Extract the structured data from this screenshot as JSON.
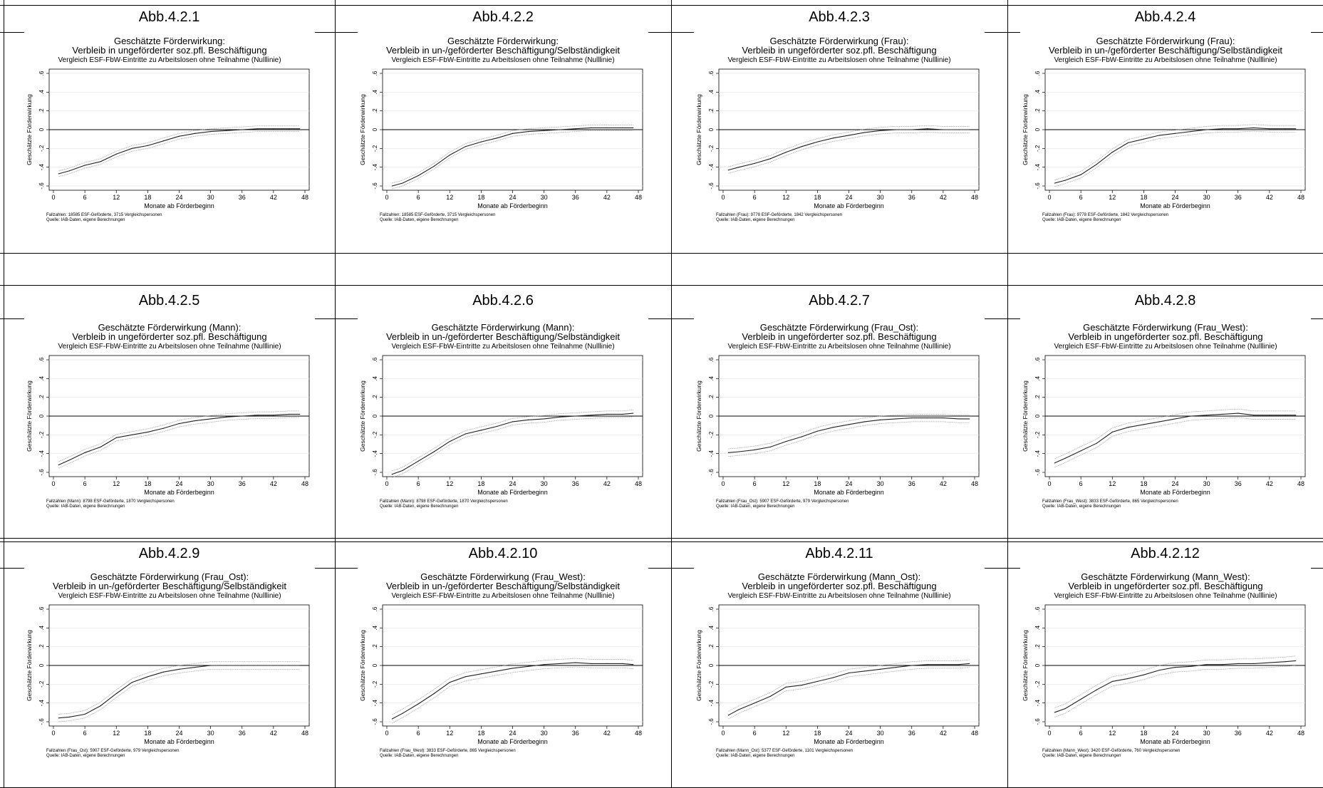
{
  "common": {
    "subtitle": "Vergleich ESF-FbW-Eintritte zu Arbeitslosen ohne Teilnahme (Nulllinie)",
    "xlabel": "Monate ab Förderbeginn",
    "ylabel": "Geschätzte Förderwirkung",
    "source": "Quelle: IAB-Daten, eigene Berechnungen",
    "xticks": [
      "0",
      "6",
      "12",
      "18",
      "24",
      "30",
      "36",
      "42",
      "48"
    ],
    "yticks": [
      "-.6",
      "-.4",
      "-.2",
      "0",
      ".2",
      ".4",
      ".6"
    ]
  },
  "figures": [
    {
      "label": "Abb.4.2.1",
      "chart_data": {
        "type": "line",
        "title": "Geschätzte Förderwirkung:",
        "title2": "Verbleib in ungeförderter soz.pfl. Beschäftigung",
        "note": "Fallzahlen: 18585 ESF-Geförderte, 3715 Vergleichspersonen",
        "xlim": [
          0,
          48
        ],
        "ylim": [
          -0.6,
          0.6
        ],
        "x": [
          1,
          3,
          6,
          9,
          12,
          15,
          18,
          21,
          24,
          27,
          30,
          33,
          36,
          39,
          42,
          45,
          47
        ],
        "series": [
          {
            "values": [
              -0.47,
              -0.44,
              -0.38,
              -0.34,
              -0.26,
              -0.2,
              -0.17,
              -0.12,
              -0.07,
              -0.04,
              -0.02,
              -0.01,
              0.0,
              0.01,
              0.01,
              0.01,
              0.01
            ]
          }
        ],
        "ci": 0.03
      }
    },
    {
      "label": "Abb.4.2.2",
      "chart_data": {
        "type": "line",
        "title": "Geschätzte Förderwirkung:",
        "title2": "Verbleib in un-/geförderter Beschäftigung/Selbständigkeit",
        "note": "Fallzahlen: 18585 ESF-Geförderte, 3715 Vergleichspersonen",
        "xlim": [
          0,
          48
        ],
        "ylim": [
          -0.6,
          0.6
        ],
        "x": [
          1,
          3,
          6,
          9,
          12,
          15,
          18,
          21,
          24,
          27,
          30,
          33,
          36,
          39,
          42,
          45,
          47
        ],
        "series": [
          {
            "values": [
              -0.6,
              -0.57,
              -0.49,
              -0.39,
              -0.27,
              -0.18,
              -0.13,
              -0.09,
              -0.04,
              -0.02,
              -0.01,
              0.0,
              0.01,
              0.02,
              0.02,
              0.02,
              0.02
            ]
          }
        ],
        "ci": 0.03
      }
    },
    {
      "label": "Abb.4.2.3",
      "chart_data": {
        "type": "line",
        "title": "Geschätzte Förderwirkung (Frau):",
        "title2": "Verbleib in ungeförderter soz.pfl. Beschäftigung",
        "note": "Fallzahlen (Frau): 9778 ESF-Geförderte, 1842 Vergleichspersonen",
        "xlim": [
          0,
          48
        ],
        "ylim": [
          -0.6,
          0.6
        ],
        "x": [
          1,
          3,
          6,
          9,
          12,
          15,
          18,
          21,
          24,
          27,
          30,
          33,
          36,
          39,
          42,
          45,
          47
        ],
        "series": [
          {
            "values": [
              -0.43,
              -0.4,
              -0.36,
              -0.31,
              -0.24,
              -0.18,
              -0.13,
              -0.09,
              -0.06,
              -0.03,
              -0.01,
              0.0,
              0.0,
              0.01,
              0.0,
              0.0,
              0.0
            ]
          }
        ],
        "ci": 0.035
      }
    },
    {
      "label": "Abb.4.2.4",
      "chart_data": {
        "type": "line",
        "title": "Geschätzte Förderwirkung (Frau):",
        "title2": "Verbleib in un-/geförderter Beschäftigung/Selbständigkeit",
        "note": "Fallzahlen (Frau): 9778 ESF-Geförderte, 1842 Vergleichspersonen",
        "xlim": [
          0,
          48
        ],
        "ylim": [
          -0.6,
          0.6
        ],
        "x": [
          1,
          3,
          6,
          9,
          12,
          15,
          18,
          21,
          24,
          27,
          30,
          33,
          36,
          39,
          42,
          45,
          47
        ],
        "series": [
          {
            "values": [
              -0.57,
              -0.54,
              -0.48,
              -0.37,
              -0.24,
              -0.14,
              -0.1,
              -0.06,
              -0.04,
              -0.02,
              0.0,
              0.01,
              0.01,
              0.02,
              0.01,
              0.01,
              0.01
            ]
          }
        ],
        "ci": 0.035
      }
    },
    {
      "label": "Abb.4.2.5",
      "chart_data": {
        "type": "line",
        "title": "Geschätzte Förderwirkung (Mann):",
        "title2": "Verbleib in ungeförderter soz.pfl. Beschäftigung",
        "note": "Fallzahlen (Mann): 8798 ESF-Geförderte, 1870 Vergleichspersonen",
        "xlim": [
          0,
          48
        ],
        "ylim": [
          -0.6,
          0.6
        ],
        "x": [
          1,
          3,
          6,
          9,
          12,
          15,
          18,
          21,
          24,
          27,
          30,
          33,
          36,
          39,
          42,
          45,
          47
        ],
        "series": [
          {
            "values": [
              -0.52,
              -0.47,
              -0.39,
              -0.33,
              -0.23,
              -0.2,
              -0.17,
              -0.13,
              -0.08,
              -0.05,
              -0.03,
              -0.01,
              0.0,
              0.01,
              0.01,
              0.02,
              0.02
            ]
          }
        ],
        "ci": 0.035
      }
    },
    {
      "label": "Abb.4.2.6",
      "chart_data": {
        "type": "line",
        "title": "Geschätzte Förderwirkung (Mann):",
        "title2": "Verbleib in un-/geförderter Beschäftigung/Selbständigkeit",
        "note": "Fallzahlen (Mann): 8798 ESF-Geförderte, 1870 Vergleichspersonen",
        "xlim": [
          0,
          48
        ],
        "ylim": [
          -0.6,
          0.6
        ],
        "x": [
          1,
          3,
          6,
          9,
          12,
          15,
          18,
          21,
          24,
          27,
          30,
          33,
          36,
          39,
          42,
          45,
          47
        ],
        "series": [
          {
            "values": [
              -0.62,
              -0.58,
              -0.48,
              -0.38,
              -0.27,
              -0.19,
              -0.15,
              -0.11,
              -0.06,
              -0.04,
              -0.03,
              -0.01,
              0.0,
              0.01,
              0.02,
              0.02,
              0.03
            ]
          }
        ],
        "ci": 0.035
      }
    },
    {
      "label": "Abb.4.2.7",
      "chart_data": {
        "type": "line",
        "title": "Geschätzte Förderwirkung (Frau_Ost):",
        "title2": "Verbleib in ungeförderter soz.pfl. Beschäftigung",
        "note": "Fallzahlen (Frau_Ost): 5907 ESF-Geförderte, 979 Vergleichspersonen",
        "xlim": [
          0,
          48
        ],
        "ylim": [
          -0.6,
          0.6
        ],
        "x": [
          1,
          3,
          6,
          9,
          12,
          15,
          18,
          21,
          24,
          27,
          30,
          33,
          36,
          39,
          42,
          45,
          47
        ],
        "series": [
          {
            "values": [
              -0.39,
              -0.38,
              -0.36,
              -0.33,
              -0.27,
              -0.22,
              -0.16,
              -0.12,
              -0.09,
              -0.06,
              -0.04,
              -0.03,
              -0.02,
              -0.02,
              -0.02,
              -0.03,
              -0.03
            ]
          }
        ],
        "ci": 0.04
      }
    },
    {
      "label": "Abb.4.2.8",
      "chart_data": {
        "type": "line",
        "title": "Geschätzte Förderwirkung (Frau_West):",
        "title2": "Verbleib in ungeförderter soz.pfl. Beschäftigung",
        "note": "Fallzahlen (Frau_West): 3833 ESF-Geförderte, 865 Vergleichspersonen",
        "xlim": [
          0,
          48
        ],
        "ylim": [
          -0.6,
          0.6
        ],
        "x": [
          1,
          3,
          6,
          9,
          12,
          15,
          18,
          21,
          24,
          27,
          30,
          33,
          36,
          39,
          42,
          45,
          47
        ],
        "series": [
          {
            "values": [
              -0.5,
              -0.45,
              -0.37,
              -0.29,
              -0.17,
              -0.12,
              -0.09,
              -0.06,
              -0.03,
              0.0,
              0.01,
              0.02,
              0.03,
              0.01,
              0.01,
              0.01,
              0.01
            ]
          }
        ],
        "ci": 0.045
      }
    },
    {
      "label": "Abb.4.2.9",
      "chart_data": {
        "type": "line",
        "title": "Geschätzte Förderwirkung (Frau_Ost):",
        "title2": "Verbleib in un-/geförderter Beschäftigung/Selbständigkeit",
        "note": "Fallzahlen (Frau_Ost): 5907 ESF-Geförderte, 979 Vergleichspersonen",
        "xlim": [
          0,
          48
        ],
        "ylim": [
          -0.6,
          0.6
        ],
        "x": [
          1,
          3,
          6,
          9,
          12,
          15,
          18,
          21,
          24,
          27,
          30,
          33,
          36,
          39,
          42,
          45,
          47
        ],
        "series": [
          {
            "values": [
              -0.56,
              -0.55,
              -0.52,
              -0.43,
              -0.3,
              -0.18,
              -0.12,
              -0.07,
              -0.04,
              -0.02,
              0.0,
              0.0,
              0.0,
              0.0,
              0.0,
              0.0,
              0.0
            ]
          }
        ],
        "ci": 0.04
      }
    },
    {
      "label": "Abb.4.2.10",
      "chart_data": {
        "type": "line",
        "title": "Geschätzte Förderwirkung (Frau_West):",
        "title2": "Verbleib in un-/geförderter Beschäftigung/Selbständigkeit",
        "note": "Fallzahlen (Frau_West): 3833 ESF-Geförderte, 865 Vergleichspersonen",
        "xlim": [
          0,
          48
        ],
        "ylim": [
          -0.6,
          0.6
        ],
        "x": [
          1,
          3,
          6,
          9,
          12,
          15,
          18,
          21,
          24,
          27,
          30,
          33,
          36,
          39,
          42,
          45,
          47
        ],
        "series": [
          {
            "values": [
              -0.57,
              -0.51,
              -0.41,
              -0.3,
              -0.18,
              -0.12,
              -0.09,
              -0.06,
              -0.03,
              -0.01,
              0.01,
              0.02,
              0.03,
              0.02,
              0.02,
              0.02,
              0.01
            ]
          }
        ],
        "ci": 0.045
      }
    },
    {
      "label": "Abb.4.2.11",
      "chart_data": {
        "type": "line",
        "title": "Geschätzte Förderwirkung (Mann_Ost):",
        "title2": "Verbleib in ungeförderter soz.pfl. Beschäftigung",
        "note": "Fallzahlen (Mann_Ost): 5377 ESF-Geförderte, 1101 Vergleichspersonen",
        "xlim": [
          0,
          48
        ],
        "ylim": [
          -0.6,
          0.6
        ],
        "x": [
          1,
          3,
          6,
          9,
          12,
          15,
          18,
          21,
          24,
          27,
          30,
          33,
          36,
          39,
          42,
          45,
          47
        ],
        "series": [
          {
            "values": [
              -0.53,
              -0.47,
              -0.4,
              -0.33,
              -0.23,
              -0.21,
              -0.17,
              -0.13,
              -0.08,
              -0.06,
              -0.04,
              -0.02,
              0.0,
              0.01,
              0.01,
              0.01,
              0.02
            ]
          }
        ],
        "ci": 0.04
      }
    },
    {
      "label": "Abb.4.2.12",
      "chart_data": {
        "type": "line",
        "title": "Geschätzte Förderwirkung (Mann_West):",
        "title2": "Verbleib in ungeförderter soz.pfl. Beschäftigung",
        "note": "Fallzahlen (Mann_West): 3420 ESF-Geförderte, 760 Vergleichspersonen",
        "xlim": [
          0,
          48
        ],
        "ylim": [
          -0.6,
          0.6
        ],
        "x": [
          1,
          3,
          6,
          9,
          12,
          15,
          18,
          21,
          24,
          27,
          30,
          33,
          36,
          39,
          42,
          45,
          47
        ],
        "series": [
          {
            "values": [
              -0.5,
              -0.46,
              -0.36,
              -0.26,
              -0.17,
              -0.14,
              -0.1,
              -0.05,
              -0.02,
              -0.01,
              0.01,
              0.01,
              0.02,
              0.02,
              0.03,
              0.04,
              0.05
            ]
          }
        ],
        "ci": 0.05
      }
    }
  ]
}
